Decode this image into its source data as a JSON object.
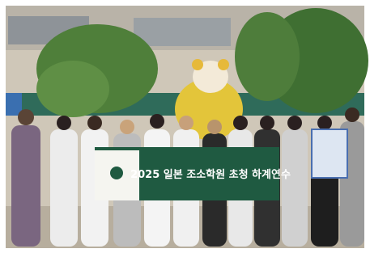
{
  "banner": {
    "title": "2025 일본 조소학원 초청 하계연수"
  }
}
